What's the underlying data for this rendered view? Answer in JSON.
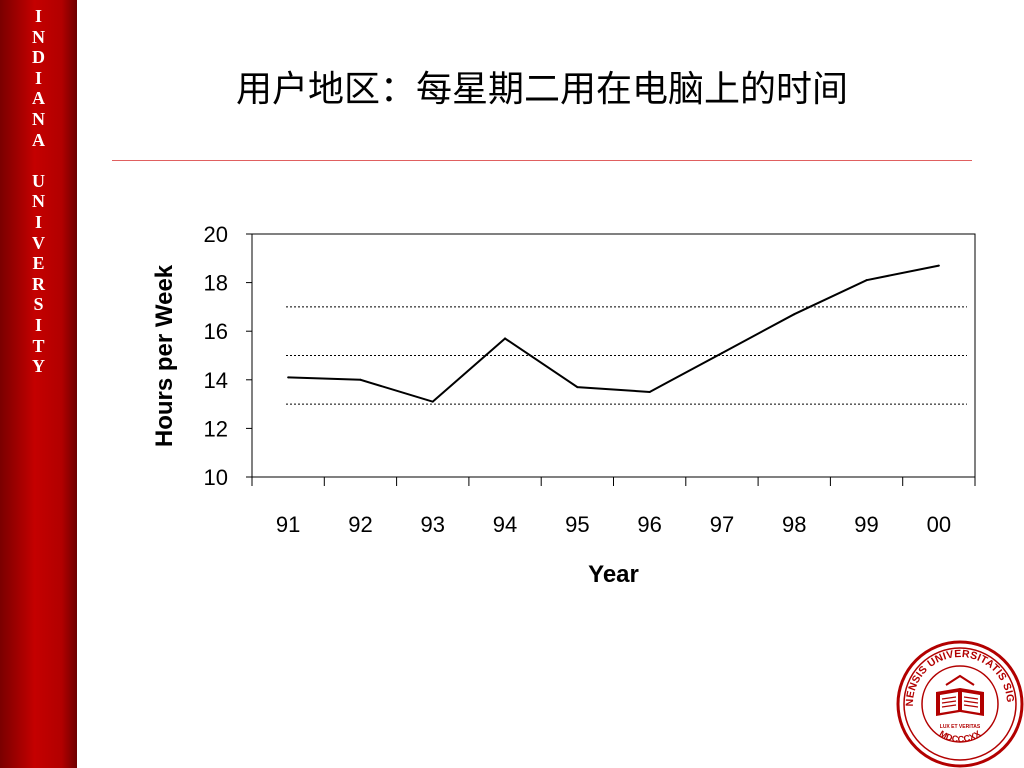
{
  "sidebar": {
    "letters": [
      "I",
      "N",
      "D",
      "I",
      "A",
      "N",
      "A",
      " ",
      "U",
      "N",
      "I",
      "V",
      "E",
      "R",
      "S",
      "I",
      "T",
      "Y"
    ],
    "color": "#b20000"
  },
  "slide": {
    "title": "用户地区：每星期二用在电脑上的时间"
  },
  "seal": {
    "text_top": "INDIANENSIS UNIVERSITATIS SIGILLUM",
    "text_bottom": "MDCCCXX",
    "motto": "LUX ET VERITAS",
    "color": "#b20000"
  },
  "chart_data": {
    "type": "line",
    "xlabel": "Year",
    "ylabel": "Hours per Week",
    "categories": [
      "91",
      "92",
      "93",
      "94",
      "95",
      "96",
      "97",
      "98",
      "99",
      "00"
    ],
    "series": [
      {
        "values": [
          14.1,
          14.0,
          13.1,
          15.7,
          13.7,
          13.5,
          15.1,
          16.7,
          18.1,
          18.7
        ]
      }
    ],
    "ylim": [
      10,
      20
    ],
    "yticks": [
      "10",
      "12",
      "14",
      "16",
      "18",
      "20"
    ],
    "gridlines": [
      13,
      15,
      17
    ],
    "grid_style": "dotted",
    "legend": "none",
    "line_color": "#000000"
  }
}
